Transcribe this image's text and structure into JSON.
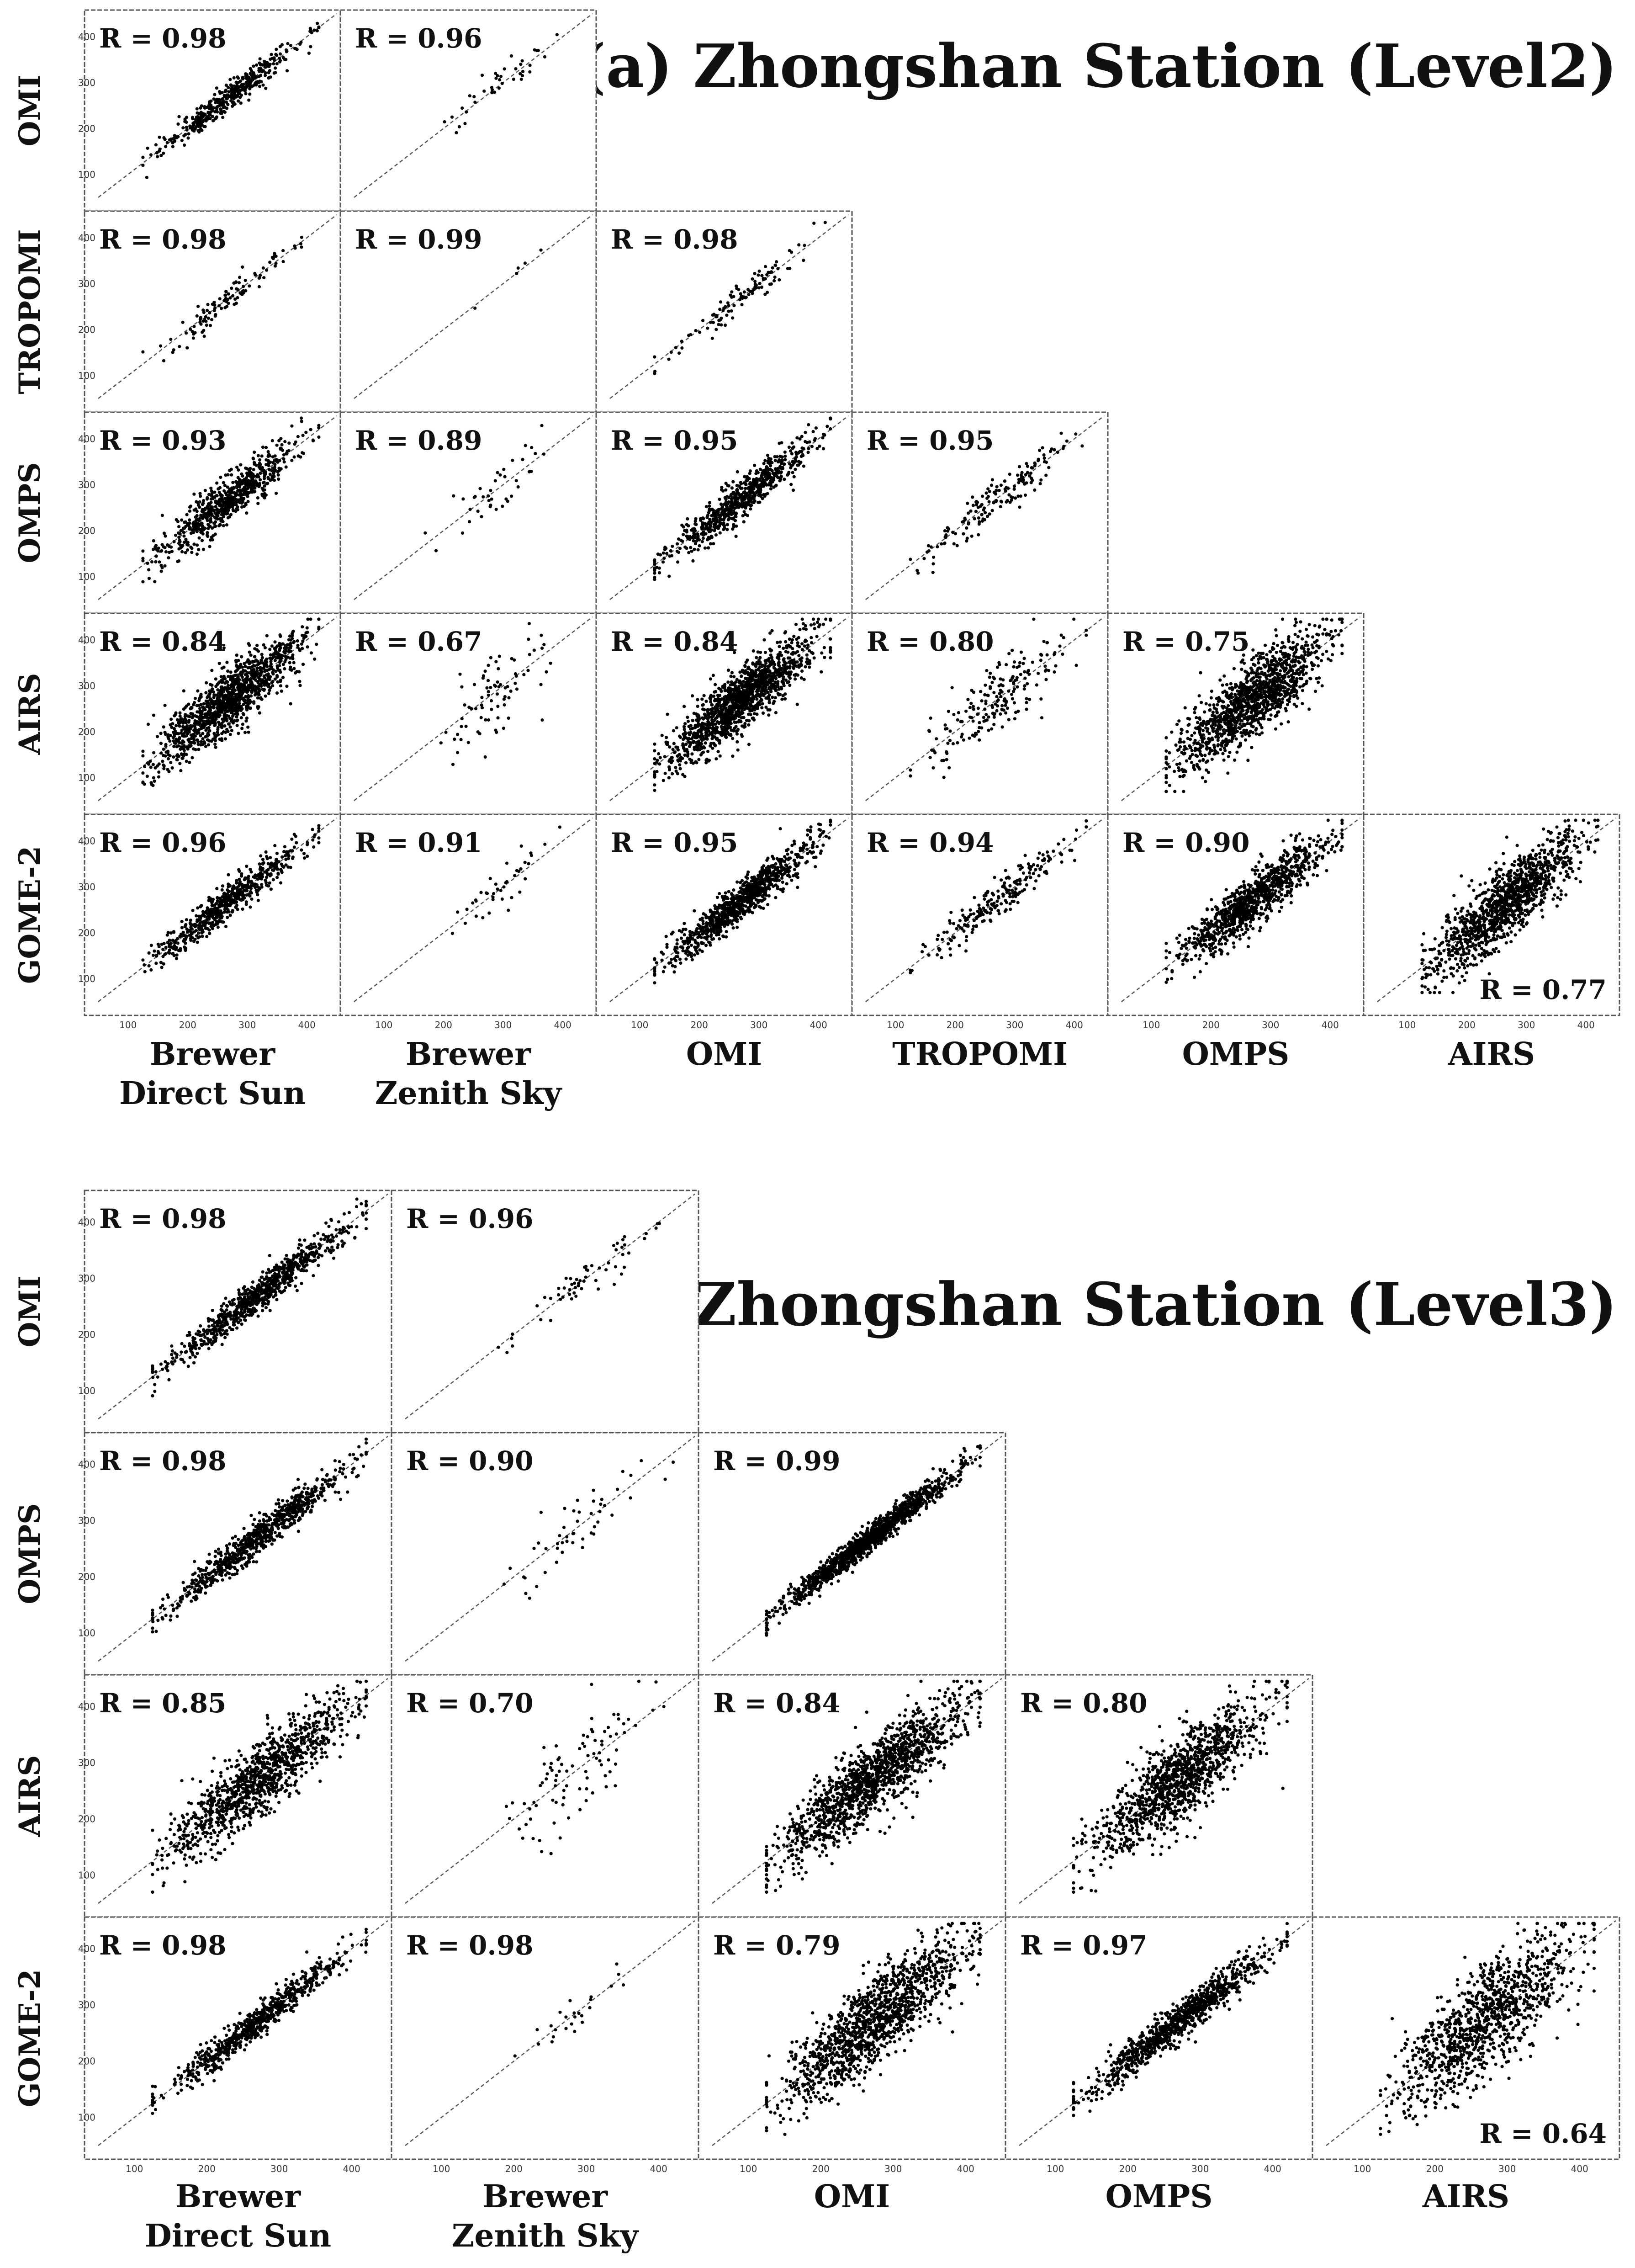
{
  "chart_data": [
    {
      "type": "scatter",
      "title": "(a) Zhongshan Station (Level2)",
      "axis_range": [
        50,
        450
      ],
      "ticks": [
        100,
        200,
        300,
        400
      ],
      "row_labels": [
        "OMI",
        "TROPOMI",
        "OMPS",
        "AIRS",
        "GOME-2"
      ],
      "col_labels": [
        {
          "line1": "Brewer",
          "line2": "Direct Sun"
        },
        {
          "line1": "Brewer",
          "line2": "Zenith Sky"
        },
        {
          "line1": "OMI",
          "line2": ""
        },
        {
          "line1": "TROPOMI",
          "line2": ""
        },
        {
          "line1": "OMPS",
          "line2": ""
        },
        {
          "line1": "AIRS",
          "line2": ""
        }
      ],
      "cells": [
        {
          "row": 0,
          "col": 0,
          "r": "R = 0.98",
          "corr": 0.98,
          "n": 420,
          "seed": 11
        },
        {
          "row": 0,
          "col": 1,
          "r": "R = 0.96",
          "corr": 0.96,
          "n": 40,
          "seed": 12,
          "center": 290
        },
        {
          "row": 1,
          "col": 0,
          "r": "R = 0.98",
          "corr": 0.98,
          "n": 110,
          "seed": 13
        },
        {
          "row": 1,
          "col": 1,
          "r": "R = 0.99",
          "corr": 0.99,
          "n": 5,
          "seed": 14,
          "center": 300
        },
        {
          "row": 1,
          "col": 2,
          "r": "R = 0.98",
          "corr": 0.98,
          "n": 110,
          "seed": 15
        },
        {
          "row": 2,
          "col": 0,
          "r": "R = 0.93",
          "corr": 0.93,
          "n": 700,
          "seed": 16
        },
        {
          "row": 2,
          "col": 1,
          "r": "R = 0.89",
          "corr": 0.89,
          "n": 40,
          "seed": 17,
          "center": 290
        },
        {
          "row": 2,
          "col": 2,
          "r": "R = 0.95",
          "corr": 0.95,
          "n": 700,
          "seed": 18
        },
        {
          "row": 2,
          "col": 3,
          "r": "R = 0.95",
          "corr": 0.95,
          "n": 160,
          "seed": 19
        },
        {
          "row": 3,
          "col": 0,
          "r": "R = 0.84",
          "corr": 0.84,
          "n": 1200,
          "seed": 20
        },
        {
          "row": 3,
          "col": 1,
          "r": "R = 0.67",
          "corr": 0.67,
          "n": 80,
          "seed": 21,
          "center": 280
        },
        {
          "row": 3,
          "col": 2,
          "r": "R = 0.84",
          "corr": 0.84,
          "n": 1400,
          "seed": 22
        },
        {
          "row": 3,
          "col": 3,
          "r": "R = 0.80",
          "corr": 0.8,
          "n": 200,
          "seed": 23
        },
        {
          "row": 3,
          "col": 4,
          "r": "R = 0.75",
          "corr": 0.75,
          "n": 1300,
          "seed": 24
        },
        {
          "row": 4,
          "col": 0,
          "r": "R = 0.96",
          "corr": 0.96,
          "n": 600,
          "seed": 25
        },
        {
          "row": 4,
          "col": 1,
          "r": "R = 0.91",
          "corr": 0.91,
          "n": 40,
          "seed": 26,
          "center": 295
        },
        {
          "row": 4,
          "col": 2,
          "r": "R = 0.95",
          "corr": 0.95,
          "n": 900,
          "seed": 27
        },
        {
          "row": 4,
          "col": 3,
          "r": "R = 0.94",
          "corr": 0.94,
          "n": 220,
          "seed": 28
        },
        {
          "row": 4,
          "col": 4,
          "r": "R = 0.90",
          "corr": 0.9,
          "n": 1000,
          "seed": 29
        },
        {
          "row": 4,
          "col": 5,
          "r": "R = 0.77",
          "corr": 0.77,
          "n": 1200,
          "seed": 30,
          "label_pos": "bottom-right"
        }
      ]
    },
    {
      "type": "scatter",
      "title": "(b) Zhongshan Station (Level3)",
      "axis_range": [
        50,
        450
      ],
      "ticks": [
        100,
        200,
        300,
        400
      ],
      "row_labels": [
        "OMI",
        "OMPS",
        "AIRS",
        "GOME-2"
      ],
      "col_labels": [
        {
          "line1": "Brewer",
          "line2": "Direct Sun"
        },
        {
          "line1": "Brewer",
          "line2": "Zenith Sky"
        },
        {
          "line1": "OMI",
          "line2": ""
        },
        {
          "line1": "OMPS",
          "line2": ""
        },
        {
          "line1": "AIRS",
          "line2": ""
        }
      ],
      "cells": [
        {
          "row": 0,
          "col": 0,
          "r": "R = 0.98",
          "corr": 0.98,
          "n": 800,
          "seed": 41
        },
        {
          "row": 0,
          "col": 1,
          "r": "R = 0.96",
          "corr": 0.96,
          "n": 60,
          "seed": 42,
          "center": 290
        },
        {
          "row": 1,
          "col": 0,
          "r": "R = 0.98",
          "corr": 0.98,
          "n": 800,
          "seed": 43
        },
        {
          "row": 1,
          "col": 1,
          "r": "R = 0.90",
          "corr": 0.9,
          "n": 50,
          "seed": 44,
          "center": 290
        },
        {
          "row": 1,
          "col": 2,
          "r": "R = 0.99",
          "corr": 0.99,
          "n": 1300,
          "seed": 45
        },
        {
          "row": 2,
          "col": 0,
          "r": "R = 0.85",
          "corr": 0.85,
          "n": 1100,
          "seed": 46
        },
        {
          "row": 2,
          "col": 1,
          "r": "R = 0.70",
          "corr": 0.7,
          "n": 90,
          "seed": 47,
          "center": 285
        },
        {
          "row": 2,
          "col": 2,
          "r": "R = 0.84",
          "corr": 0.84,
          "n": 1400,
          "seed": 48
        },
        {
          "row": 2,
          "col": 3,
          "r": "R = 0.80",
          "corr": 0.8,
          "n": 1200,
          "seed": 49
        },
        {
          "row": 3,
          "col": 0,
          "r": "R = 0.98",
          "corr": 0.98,
          "n": 700,
          "seed": 50
        },
        {
          "row": 3,
          "col": 1,
          "r": "R = 0.98",
          "corr": 0.98,
          "n": 25,
          "seed": 51,
          "center": 295
        },
        {
          "row": 3,
          "col": 2,
          "r": "R = 0.79",
          "corr": 0.79,
          "n": 1300,
          "seed": 52
        },
        {
          "row": 3,
          "col": 3,
          "r": "R = 0.97",
          "corr": 0.97,
          "n": 1000,
          "seed": 53
        },
        {
          "row": 3,
          "col": 4,
          "r": "R = 0.64",
          "corr": 0.64,
          "n": 1100,
          "seed": 54,
          "label_pos": "bottom-right"
        }
      ]
    }
  ]
}
